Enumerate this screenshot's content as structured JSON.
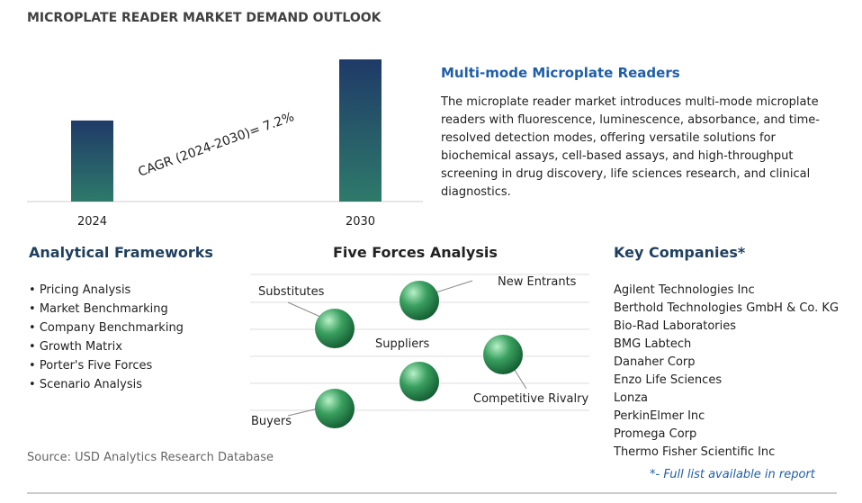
{
  "title": "MICROPLATE READER MARKET DEMAND OUTLOOK",
  "chart_data": {
    "type": "bar",
    "categories": [
      "2024",
      "2030"
    ],
    "values": [
      57,
      100
    ],
    "annotation": "CAGR (2024-2030)=  7.2%"
  },
  "description": {
    "heading": "Multi-mode Microplate Readers",
    "text": "The microplate reader market introduces multi-mode microplate readers with fluorescence, luminescence, absorbance, and time-resolved detection modes, offering versatile solutions for biochemical assays, cell-based assays, and high-throughput screening in drug discovery, life sciences research, and clinical diagnostics."
  },
  "frameworks": {
    "title": "Analytical Frameworks",
    "items": [
      "Pricing Analysis",
      "Market Benchmarking",
      "Company Benchmarking",
      "Growth Matrix",
      "Porter's Five Forces",
      "Scenario Analysis"
    ]
  },
  "five_forces": {
    "title": "Five Forces Analysis",
    "labels": [
      "Substitutes",
      "New Entrants",
      "Suppliers",
      "Competitive Rivalry",
      "Buyers"
    ]
  },
  "companies": {
    "title": "Key Companies*",
    "items": [
      "Agilent Technologies Inc",
      "Berthold Technologies GmbH & Co. KG",
      "Bio-Rad Laboratories",
      "BMG Labtech",
      "Danaher Corp",
      "Enzo Life Sciences",
      "Lonza",
      "PerkinElmer Inc",
      "Promega Corp",
      "Thermo Fisher Scientific Inc"
    ],
    "note": "*- Full list available in report"
  },
  "source": "Source: USD Analytics Research Database"
}
